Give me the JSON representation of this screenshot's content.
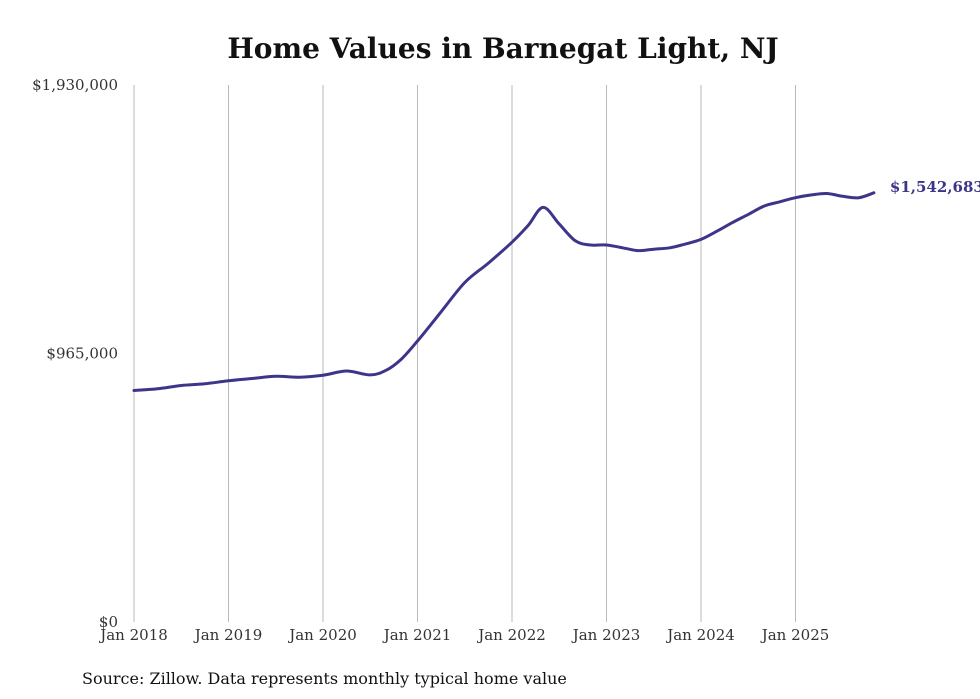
{
  "chart_data": {
    "type": "line",
    "title": "Home Values in Barnegat Light, NJ",
    "xlabel": "",
    "ylabel": "",
    "ylim": [
      0,
      1930000
    ],
    "y_ticks": [
      {
        "value": 0,
        "label": "$0"
      },
      {
        "value": 965000,
        "label": "$965,000"
      },
      {
        "value": 1930000,
        "label": "$1,930,000"
      }
    ],
    "x_range": [
      2018.0,
      2025.83
    ],
    "x_ticks": [
      {
        "value": 2018,
        "label": "Jan 2018"
      },
      {
        "value": 2019,
        "label": "Jan 2019"
      },
      {
        "value": 2020,
        "label": "Jan 2020"
      },
      {
        "value": 2021,
        "label": "Jan 2021"
      },
      {
        "value": 2022,
        "label": "Jan 2022"
      },
      {
        "value": 2023,
        "label": "Jan 2023"
      },
      {
        "value": 2024,
        "label": "Jan 2024"
      },
      {
        "value": 2025,
        "label": "Jan 2025"
      }
    ],
    "vertical_grid": true,
    "series": [
      {
        "name": "Typical home value",
        "color": "#3d3589",
        "x": [
          2018.0,
          2018.25,
          2018.5,
          2018.75,
          2019.0,
          2019.25,
          2019.5,
          2019.75,
          2020.0,
          2020.25,
          2020.5,
          2020.67,
          2020.83,
          2021.0,
          2021.25,
          2021.5,
          2021.75,
          2022.0,
          2022.17,
          2022.33,
          2022.5,
          2022.67,
          2022.83,
          2023.0,
          2023.17,
          2023.33,
          2023.5,
          2023.67,
          2023.83,
          2024.0,
          2024.17,
          2024.33,
          2024.5,
          2024.67,
          2024.83,
          2025.0,
          2025.17,
          2025.33,
          2025.5,
          2025.67,
          2025.83
        ],
        "values": [
          832000,
          838000,
          850000,
          856000,
          867000,
          875000,
          883000,
          880000,
          887000,
          902000,
          888000,
          905000,
          945000,
          1010000,
          1115000,
          1220000,
          1290000,
          1365000,
          1425000,
          1490000,
          1430000,
          1370000,
          1355000,
          1355000,
          1345000,
          1335000,
          1340000,
          1345000,
          1358000,
          1375000,
          1405000,
          1435000,
          1465000,
          1495000,
          1510000,
          1525000,
          1535000,
          1540000,
          1530000,
          1525000,
          1542683
        ]
      }
    ],
    "end_label": "$1,542,683",
    "source": "Source: Zillow. Data represents monthly typical home value"
  }
}
